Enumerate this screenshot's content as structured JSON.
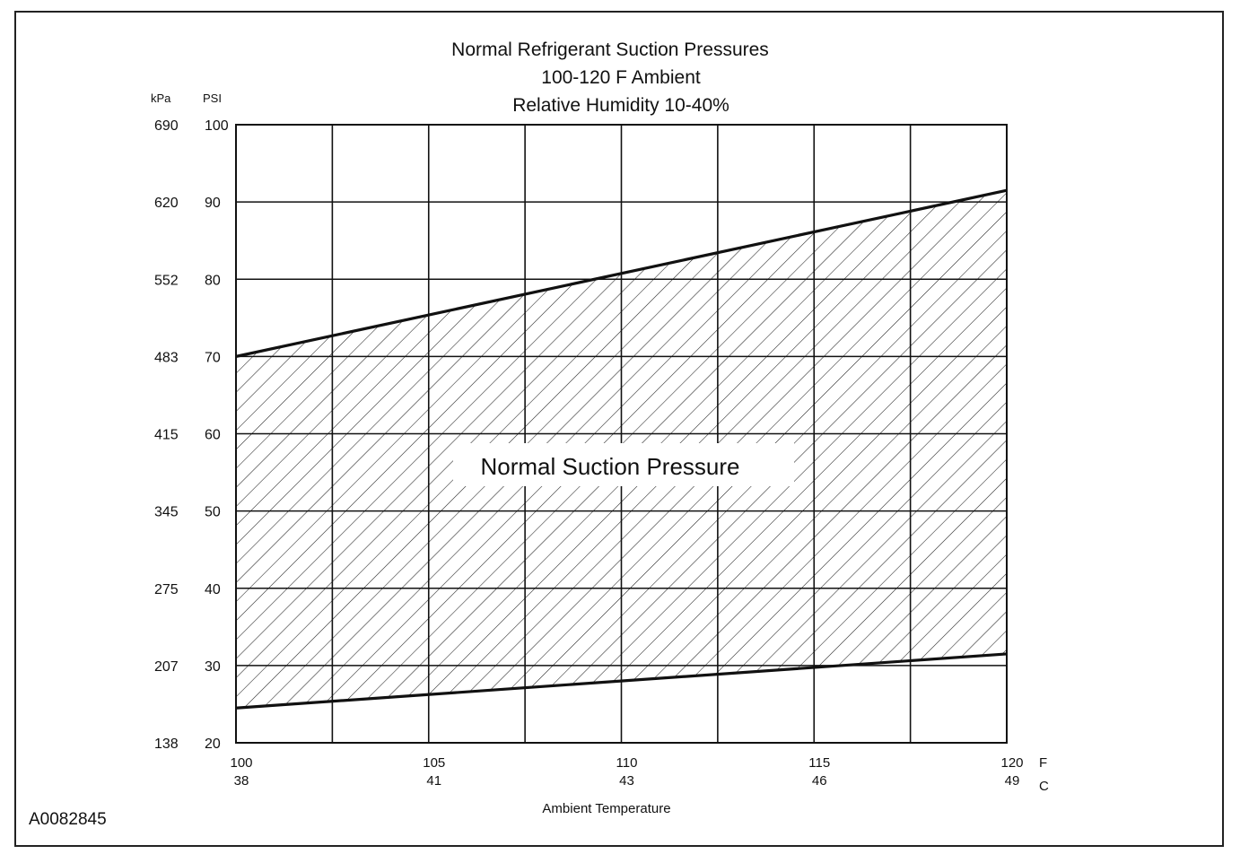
{
  "figure_id": "A0082845",
  "chart_data": {
    "type": "area",
    "title_lines": [
      "Normal  Refrigerant  Suction  Pressures",
      "100-120 F Ambient",
      "Relative Humidity 10-40%"
    ],
    "xlabel": "Ambient Temperature",
    "x_unit_primary": "F",
    "x_unit_secondary": "C",
    "y_unit_primary": "PSI",
    "y_unit_secondary": "kPa",
    "xlim": [
      100,
      120
    ],
    "ylim": [
      20,
      100
    ],
    "x_ticks": [
      {
        "f": 100,
        "f_label": "100",
        "c_label": "38"
      },
      {
        "f": 105,
        "f_label": "105",
        "c_label": "41"
      },
      {
        "f": 110,
        "f_label": "110",
        "c_label": "43"
      },
      {
        "f": 115,
        "f_label": "115",
        "c_label": "46"
      },
      {
        "f": 120,
        "f_label": "120",
        "c_label": "49"
      }
    ],
    "x_minor_gridlines": [
      102.5,
      107.5,
      112.5,
      117.5
    ],
    "y_ticks": [
      {
        "psi": 100,
        "psi_label": "100",
        "kpa_label": "690"
      },
      {
        "psi": 90,
        "psi_label": "90",
        "kpa_label": "620"
      },
      {
        "psi": 80,
        "psi_label": "80",
        "kpa_label": "552"
      },
      {
        "psi": 70,
        "psi_label": "70",
        "kpa_label": "483"
      },
      {
        "psi": 60,
        "psi_label": "60",
        "kpa_label": "415"
      },
      {
        "psi": 50,
        "psi_label": "50",
        "kpa_label": "345"
      },
      {
        "psi": 40,
        "psi_label": "40",
        "kpa_label": "275"
      },
      {
        "psi": 30,
        "psi_label": "30",
        "kpa_label": "207"
      },
      {
        "psi": 20,
        "psi_label": "20",
        "kpa_label": "138"
      }
    ],
    "grid": true,
    "band": {
      "label": "Normal Suction Pressure",
      "x": [
        100,
        120
      ],
      "upper": [
        70,
        91.5
      ],
      "lower": [
        24.5,
        31.5
      ],
      "fill": "diagonal-hatch"
    }
  }
}
